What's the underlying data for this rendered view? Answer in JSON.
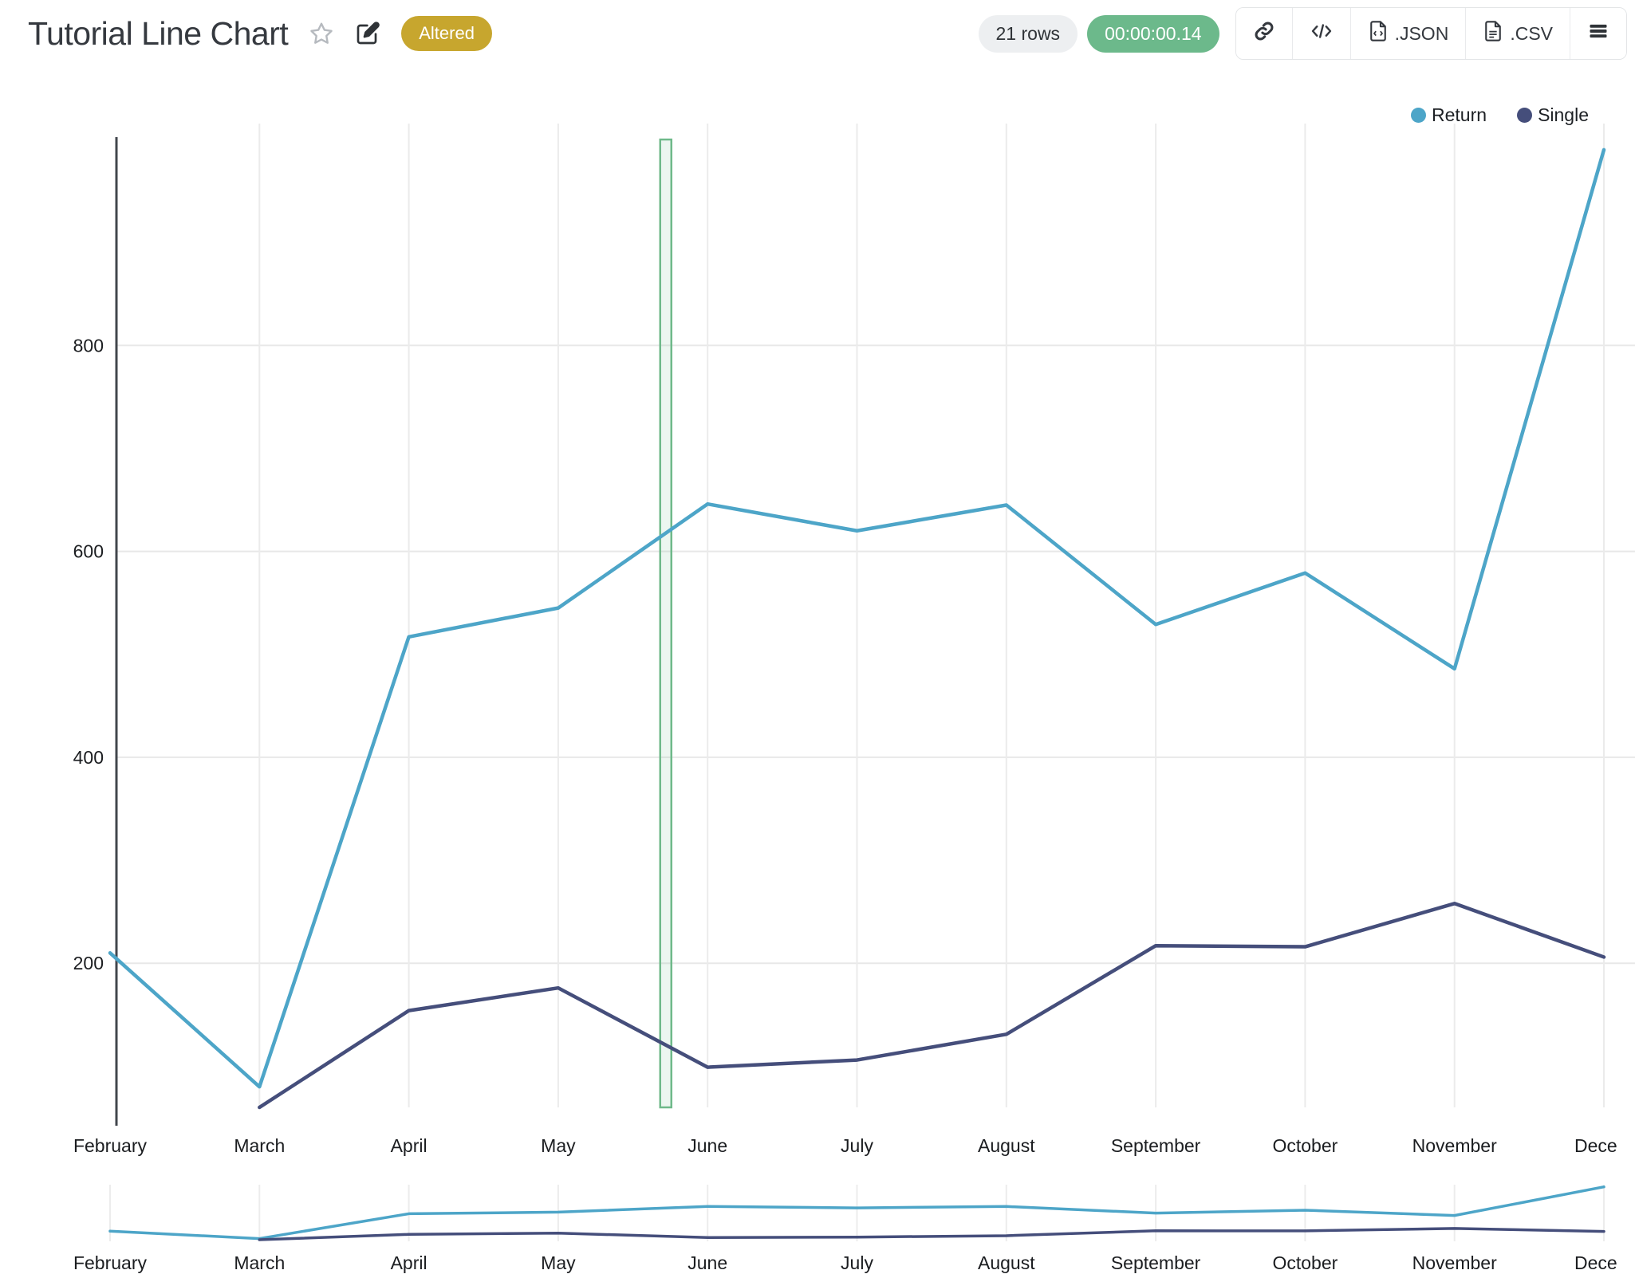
{
  "header": {
    "title": "Tutorial Line Chart",
    "badge": "Altered",
    "rows_label": "21 rows",
    "timer": "00:00:00.14",
    "export_json": ".JSON",
    "export_csv": ".CSV"
  },
  "colors": {
    "badge_gold": "#c7a62e",
    "timer_green": "#6cb98b",
    "return_blue": "#4da5c8",
    "single_navy": "#454e7b",
    "band_green": "#6fb98a"
  },
  "chart_data": {
    "type": "line",
    "categories": [
      "February",
      "March",
      "April",
      "May",
      "June",
      "July",
      "August",
      "September",
      "October",
      "November",
      "December"
    ],
    "last_label_truncated": "Dece",
    "series": [
      {
        "name": "Return",
        "color": "#4da5c8",
        "values": [
          210,
          80,
          517,
          545,
          646,
          620,
          645,
          529,
          579,
          486,
          990
        ]
      },
      {
        "name": "Single",
        "color": "#454e7b",
        "values": [
          null,
          60,
          154,
          176,
          99,
          106,
          131,
          217,
          216,
          258,
          206
        ]
      }
    ],
    "yticks": [
      200,
      400,
      600,
      800
    ],
    "ylim": [
      60,
      1000
    ],
    "grid": true,
    "legend_position": "top-right",
    "highlight_band": {
      "between": [
        "May",
        "June"
      ],
      "fraction": 0.72,
      "width": 14,
      "color": "#6fb98a",
      "fill": "rgba(111,185,138,0.13)"
    },
    "navigator": {
      "shown": true,
      "categories_same_as_main": true
    }
  }
}
